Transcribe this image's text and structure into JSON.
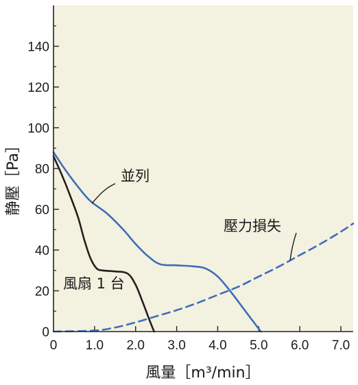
{
  "chart_data": {
    "type": "line",
    "title": "",
    "xlabel": "風量［m³/min］",
    "ylabel": "静壓［Pa］",
    "xlim": [
      0,
      7.3
    ],
    "ylim": [
      0,
      160
    ],
    "xticks": [
      0,
      1.0,
      2.0,
      3.0,
      4.0,
      5.0,
      6.0,
      7.0
    ],
    "xtick_labels": [
      "0",
      "1.0",
      "2.0",
      "3.0",
      "4.0",
      "5.0",
      "6.0",
      "7.0"
    ],
    "yticks": [
      0,
      20,
      40,
      60,
      80,
      100,
      120,
      140
    ],
    "ytick_labels": [
      "0",
      "20",
      "40",
      "60",
      "80",
      "100",
      "120",
      "140"
    ],
    "grid": false,
    "plot_background": "#f3f1df",
    "series": [
      {
        "name": "風扇 1 台",
        "color": "#2a1d1d",
        "style": "solid",
        "x": [
          0,
          0.2,
          0.4,
          0.6,
          0.75,
          0.9,
          1.05,
          1.2,
          1.5,
          1.8,
          2.0,
          2.2,
          2.35,
          2.45
        ],
        "y": [
          86,
          77,
          67,
          56,
          45,
          36,
          31,
          30,
          29.5,
          28.5,
          23,
          13,
          5,
          0
        ]
      },
      {
        "name": "並列",
        "color": "#3d6cb9",
        "style": "solid",
        "x": [
          0,
          0.3,
          0.6,
          0.9,
          1.3,
          1.7,
          2.0,
          2.3,
          2.6,
          3.0,
          3.4,
          3.7,
          4.0,
          4.3,
          4.6,
          4.9,
          5.05
        ],
        "y": [
          88,
          79,
          71,
          64,
          58,
          50,
          43,
          37,
          33,
          32.5,
          32,
          31,
          27,
          20,
          12,
          4,
          0
        ]
      },
      {
        "name": "壓力損失",
        "color": "#3d6cb9",
        "style": "dashed",
        "x": [
          0,
          1.0,
          1.5,
          2.0,
          2.5,
          3.0,
          3.5,
          4.0,
          4.5,
          5.0,
          5.5,
          6.0,
          6.5,
          7.0,
          7.3
        ],
        "y": [
          0,
          0.5,
          2,
          4.5,
          7.5,
          10.5,
          14,
          18,
          22,
          27,
          32,
          37.5,
          43,
          49,
          53
        ]
      }
    ],
    "annotations": [
      {
        "text": "並列",
        "target_series": "並列"
      },
      {
        "text": "壓力損失",
        "target_series": "壓力損失"
      },
      {
        "text": "風扇 1 台",
        "target_series": "風扇 1 台"
      }
    ]
  }
}
